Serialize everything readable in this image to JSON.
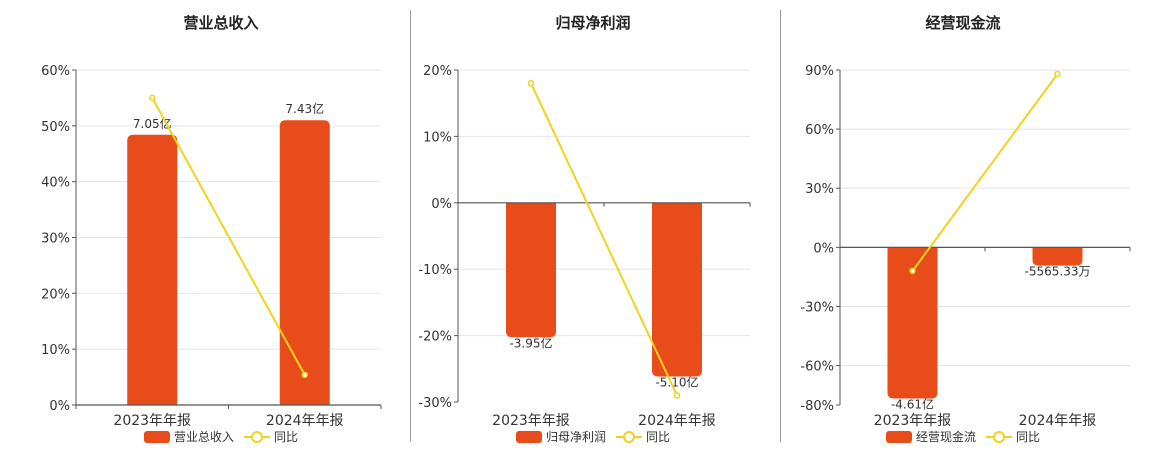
{
  "colors": {
    "bar": "#e84c1a",
    "line": "#f2d21c",
    "axis": "#555555",
    "grid": "#e6e6e6"
  },
  "chart_data": [
    {
      "type": "bar",
      "title": "营业总收入",
      "categories": [
        "2023年年报",
        "2024年年报"
      ],
      "series": [
        {
          "name": "营业总收入",
          "type": "bar",
          "values": [
            7.05,
            7.43
          ],
          "unit": "亿",
          "labels": [
            "7.05亿",
            "7.43亿"
          ]
        },
        {
          "name": "同比",
          "type": "line",
          "values": [
            55,
            5.4
          ],
          "unit": "%"
        }
      ],
      "ylim": [
        0,
        60
      ],
      "yticks": [
        "0%",
        "10%",
        "20%",
        "30%",
        "40%",
        "50%",
        "60%"
      ],
      "bar_axis_max": 8.74,
      "grid": true
    },
    {
      "type": "bar",
      "title": "归母净利润",
      "categories": [
        "2023年年报",
        "2024年年报"
      ],
      "series": [
        {
          "name": "归母净利润",
          "type": "bar",
          "values": [
            -3.95,
            -5.1
          ],
          "unit": "亿",
          "labels": [
            "-3.95亿",
            "-5.10亿"
          ]
        },
        {
          "name": "同比",
          "type": "line",
          "values": [
            18,
            -29
          ],
          "unit": "%"
        }
      ],
      "ylim": [
        -30,
        20
      ],
      "yticks": [
        "-30%",
        "-20%",
        "-10%",
        "0%",
        "10%",
        "20%"
      ],
      "bar_axis_min": -5.85,
      "grid": true
    },
    {
      "type": "bar",
      "title": "经营现金流",
      "categories": [
        "2023年年报",
        "2024年年报"
      ],
      "series": [
        {
          "name": "经营现金流",
          "type": "bar",
          "values": [
            -4.61,
            -0.5565
          ],
          "unit": "亿",
          "labels": [
            "-4.61亿",
            "-5565.33万"
          ]
        },
        {
          "name": "同比",
          "type": "line",
          "values": [
            -12,
            88
          ],
          "unit": "%"
        }
      ],
      "ylim": [
        -80,
        90
      ],
      "yticks": [
        "-80%",
        "-60%",
        "-30%",
        "0%",
        "30%",
        "60%",
        "90%"
      ],
      "bar_axis_min": -4.81,
      "grid": true
    }
  ]
}
